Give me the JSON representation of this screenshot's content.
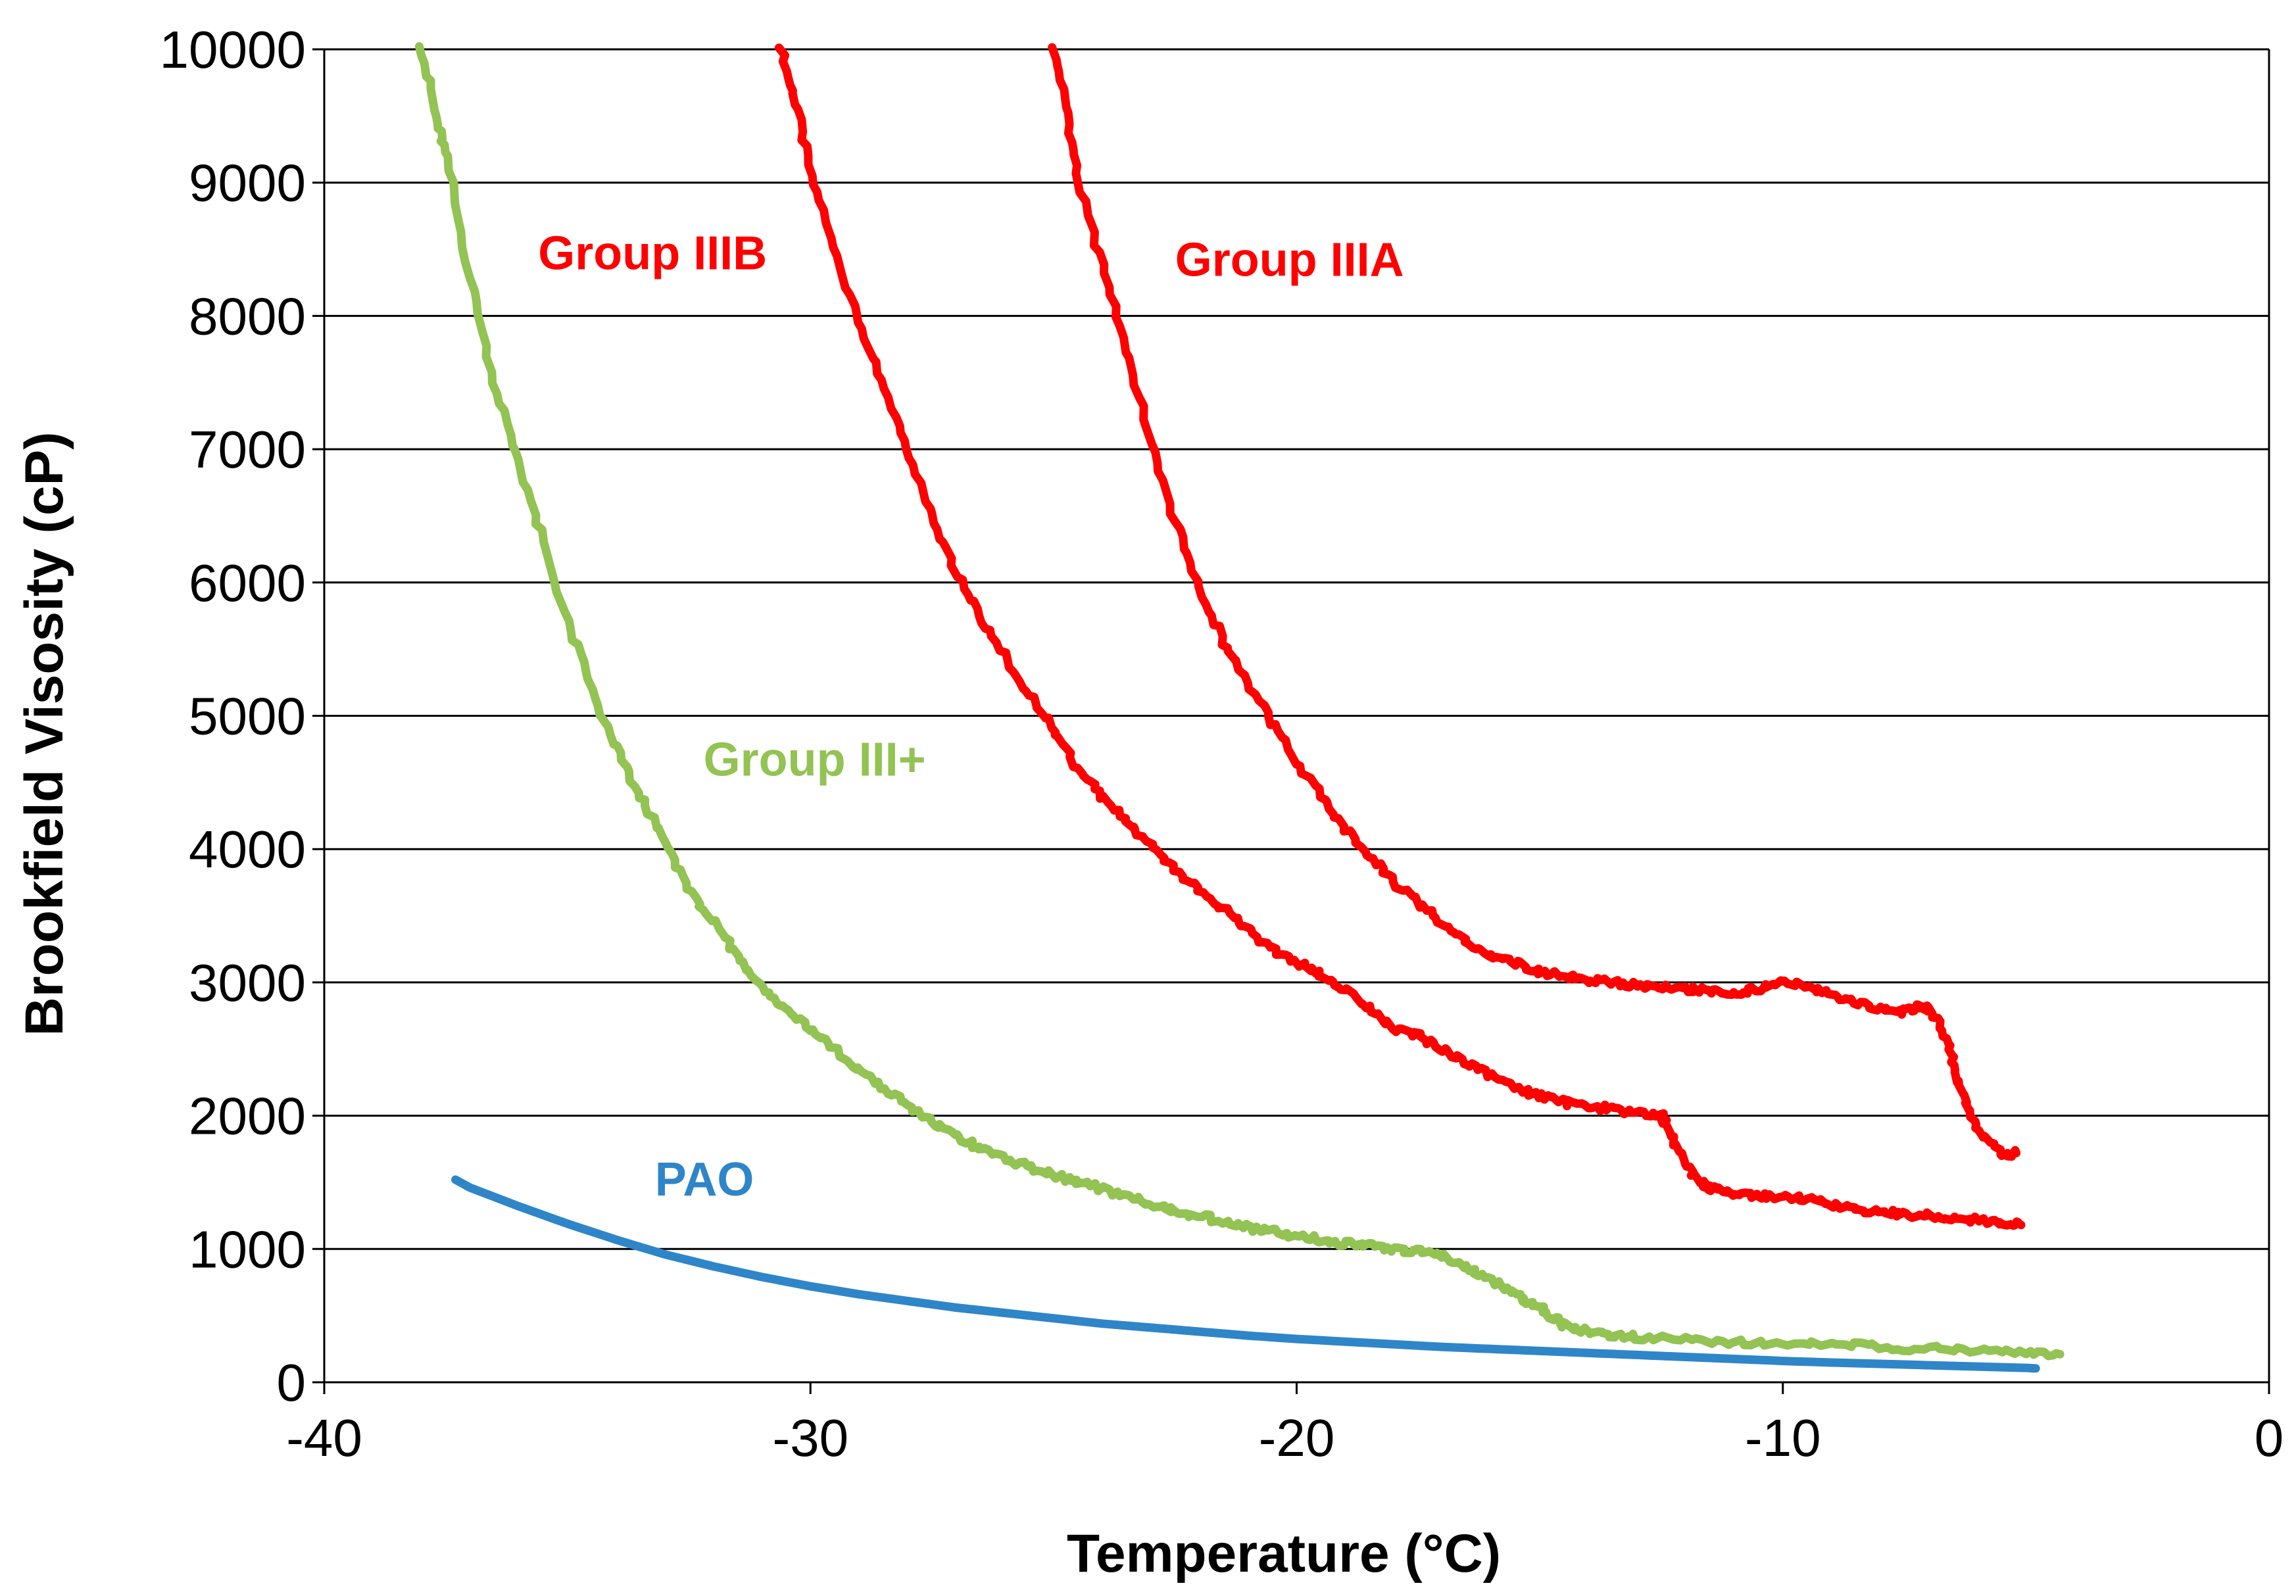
{
  "chart_data": {
    "type": "line",
    "title": "",
    "xlabel": "Temperature (°C)",
    "ylabel": "Brookfield Visosity (cP)",
    "xlim": [
      -40,
      0
    ],
    "ylim": [
      0,
      10000
    ],
    "x_ticks": [
      -40,
      -30,
      -20,
      -10,
      0
    ],
    "y_ticks": [
      0,
      1000,
      2000,
      3000,
      4000,
      5000,
      6000,
      7000,
      8000,
      9000,
      10000
    ],
    "grid": "horizontal",
    "legend": "inline labels",
    "series": [
      {
        "name": "Group IIIB",
        "color": "#ff0000",
        "label_anchor": {
          "x": -35.6,
          "y": 8350
        },
        "x": [
          -30.6,
          -30.3,
          -30.0,
          -29.5,
          -29.0,
          -28.5,
          -28.0,
          -27.5,
          -27.0,
          -26.5,
          -26.0,
          -25.5,
          -25.0,
          -24.5,
          -24.0,
          -23.5,
          -23.0,
          -22.5,
          -22.0,
          -21.5,
          -21.0,
          -20.5,
          -20.0,
          -19.5,
          -19.0,
          -18.5,
          -18.0,
          -17.5,
          -17.0,
          -16.5,
          -16.0,
          -15.5,
          -15.0,
          -14.5,
          -14.0,
          -13.5,
          -13.0,
          -12.5,
          -12.3,
          -12.0,
          -11.7,
          -11.5,
          -11.0,
          -10.5,
          -10.0,
          -9.5,
          -9.0,
          -8.5,
          -8.0,
          -7.5,
          -7.0,
          -6.5,
          -6.0,
          -5.5,
          -5.1
        ],
        "values": [
          10000,
          9600,
          9050,
          8500,
          7950,
          7450,
          7000,
          6500,
          6100,
          5750,
          5450,
          5150,
          4900,
          4600,
          4400,
          4200,
          4050,
          3850,
          3700,
          3550,
          3400,
          3250,
          3150,
          3050,
          2950,
          2800,
          2650,
          2600,
          2500,
          2400,
          2300,
          2200,
          2150,
          2100,
          2070,
          2050,
          2020,
          2000,
          1850,
          1650,
          1500,
          1450,
          1420,
          1400,
          1390,
          1380,
          1330,
          1300,
          1280,
          1260,
          1250,
          1230,
          1220,
          1200,
          1180
        ]
      },
      {
        "name": "Group IIIA",
        "color": "#ff0000",
        "label_anchor": {
          "x": -22.5,
          "y": 8300
        },
        "x": [
          -25.0,
          -24.7,
          -24.5,
          -24.0,
          -23.5,
          -23.0,
          -22.5,
          -22.0,
          -21.5,
          -21.0,
          -20.5,
          -20.0,
          -19.5,
          -19.0,
          -18.5,
          -18.0,
          -17.5,
          -17.0,
          -16.5,
          -16.0,
          -15.5,
          -15.0,
          -14.5,
          -14.0,
          -13.5,
          -13.0,
          -12.5,
          -12.0,
          -11.5,
          -11.0,
          -10.5,
          -10.0,
          -9.5,
          -9.0,
          -8.5,
          -8.0,
          -7.5,
          -7.2,
          -7.0,
          -6.7,
          -6.5,
          -6.3,
          -6.0,
          -5.5,
          -5.2
        ],
        "values": [
          10000,
          9500,
          9000,
          8400,
          7750,
          7050,
          6450,
          5950,
          5550,
          5250,
          4950,
          4650,
          4400,
          4150,
          3950,
          3750,
          3600,
          3450,
          3300,
          3200,
          3150,
          3080,
          3050,
          3020,
          3000,
          2980,
          2960,
          2950,
          2940,
          2920,
          2950,
          3000,
          2980,
          2900,
          2850,
          2800,
          2780,
          2820,
          2800,
          2650,
          2400,
          2150,
          1900,
          1700,
          1720
        ]
      },
      {
        "name": "Group III+",
        "color": "#92c353",
        "label_anchor": {
          "x": -32.2,
          "y": 4550
        },
        "x": [
          -38.0,
          -37.7,
          -37.5,
          -37.0,
          -36.5,
          -36.0,
          -35.5,
          -35.0,
          -34.5,
          -34.0,
          -33.5,
          -33.0,
          -32.5,
          -32.0,
          -31.5,
          -31.0,
          -30.5,
          -30.0,
          -29.5,
          -29.0,
          -28.5,
          -28.0,
          -27.5,
          -27.0,
          -26.5,
          -26.0,
          -25.5,
          -25.0,
          -24.5,
          -24.0,
          -23.5,
          -23.0,
          -22.5,
          -22.0,
          -21.5,
          -21.0,
          -20.5,
          -20.0,
          -19.5,
          -19.0,
          -18.5,
          -18.0,
          -17.5,
          -17.0,
          -16.5,
          -16.0,
          -15.5,
          -15.0,
          -14.7,
          -14.5,
          -14.0,
          -13.5,
          -13.0,
          -12.0,
          -11.0,
          -10.0,
          -9.0,
          -8.0,
          -7.0,
          -6.0,
          -5.0,
          -4.3
        ],
        "values": [
          10000,
          9500,
          9200,
          8300,
          7500,
          6900,
          6300,
          5700,
          5200,
          4750,
          4400,
          4050,
          3700,
          3450,
          3200,
          2950,
          2800,
          2650,
          2500,
          2350,
          2200,
          2080,
          1950,
          1850,
          1750,
          1680,
          1620,
          1560,
          1500,
          1450,
          1400,
          1340,
          1290,
          1250,
          1200,
          1160,
          1130,
          1100,
          1070,
          1040,
          1020,
          1000,
          980,
          950,
          860,
          760,
          650,
          560,
          480,
          430,
          380,
          360,
          340,
          320,
          300,
          290,
          280,
          270,
          250,
          240,
          220,
          210
        ]
      },
      {
        "name": "PAO",
        "color": "#2e86c8",
        "label_anchor": {
          "x": -33.2,
          "y": 1400
        },
        "x": [
          -37.3,
          -37.0,
          -36.0,
          -35.0,
          -34.0,
          -33.0,
          -32.0,
          -31.0,
          -30.0,
          -29.0,
          -28.0,
          -27.0,
          -26.0,
          -25.0,
          -24.0,
          -23.0,
          -22.0,
          -21.0,
          -20.0,
          -19.0,
          -18.0,
          -17.0,
          -16.0,
          -15.0,
          -14.0,
          -13.0,
          -12.0,
          -11.0,
          -10.0,
          -9.0,
          -8.0,
          -7.0,
          -6.0,
          -5.0,
          -4.8
        ],
        "values": [
          1520,
          1460,
          1320,
          1190,
          1070,
          960,
          870,
          790,
          720,
          660,
          610,
          560,
          520,
          480,
          440,
          410,
          380,
          350,
          325,
          305,
          285,
          265,
          250,
          235,
          220,
          205,
          190,
          175,
          160,
          148,
          138,
          128,
          118,
          108,
          104
        ]
      }
    ]
  }
}
